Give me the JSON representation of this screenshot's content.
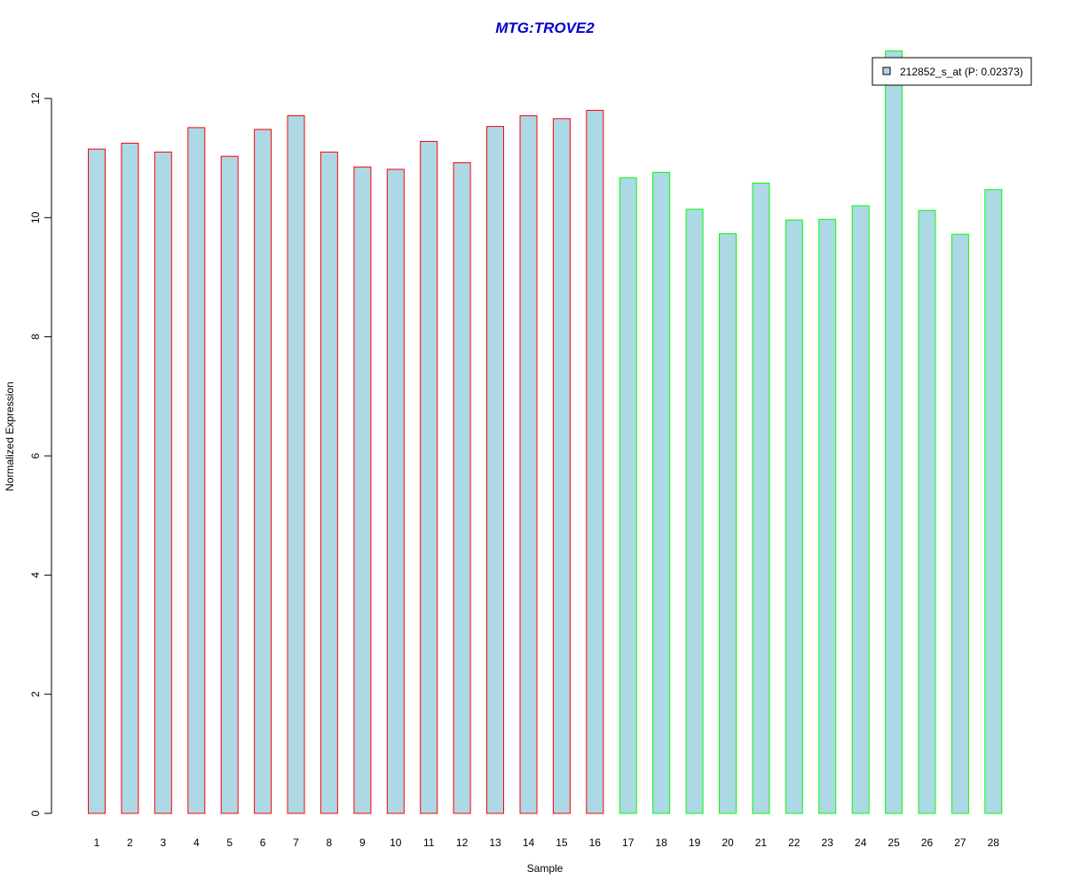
{
  "chart_data": {
    "type": "bar",
    "title": "MTG:TROVE2",
    "xlabel": "Sample",
    "ylabel": "Normalized Expression",
    "categories": [
      "1",
      "2",
      "3",
      "4",
      "5",
      "6",
      "7",
      "8",
      "9",
      "10",
      "11",
      "12",
      "13",
      "14",
      "15",
      "16",
      "17",
      "18",
      "19",
      "20",
      "21",
      "22",
      "23",
      "24",
      "25",
      "26",
      "27",
      "28"
    ],
    "series": [
      {
        "name": "212852_s_at (P: 0.02373)",
        "values": [
          11.15,
          11.25,
          11.1,
          11.51,
          11.03,
          11.48,
          11.71,
          11.1,
          10.85,
          10.81,
          11.28,
          10.92,
          11.53,
          11.71,
          11.66,
          11.8,
          10.67,
          10.76,
          10.14,
          9.73,
          10.58,
          9.96,
          9.97,
          10.2,
          12.8,
          10.12,
          9.72,
          10.47
        ]
      }
    ],
    "groups": [
      1,
      1,
      1,
      1,
      1,
      1,
      1,
      1,
      1,
      1,
      1,
      1,
      1,
      1,
      1,
      1,
      2,
      2,
      2,
      2,
      2,
      2,
      2,
      2,
      2,
      2,
      2,
      2
    ],
    "y_ticks": [
      0,
      2,
      4,
      6,
      8,
      10,
      12
    ],
    "ylim": [
      0,
      12.8
    ],
    "grid": false,
    "legend_position": "top-right",
    "colors": {
      "bar_fill": "#add8e6",
      "group1_border": "#ff0000",
      "group2_border": "#00ff00",
      "title": "#0000cd",
      "axis": "#000000"
    }
  }
}
